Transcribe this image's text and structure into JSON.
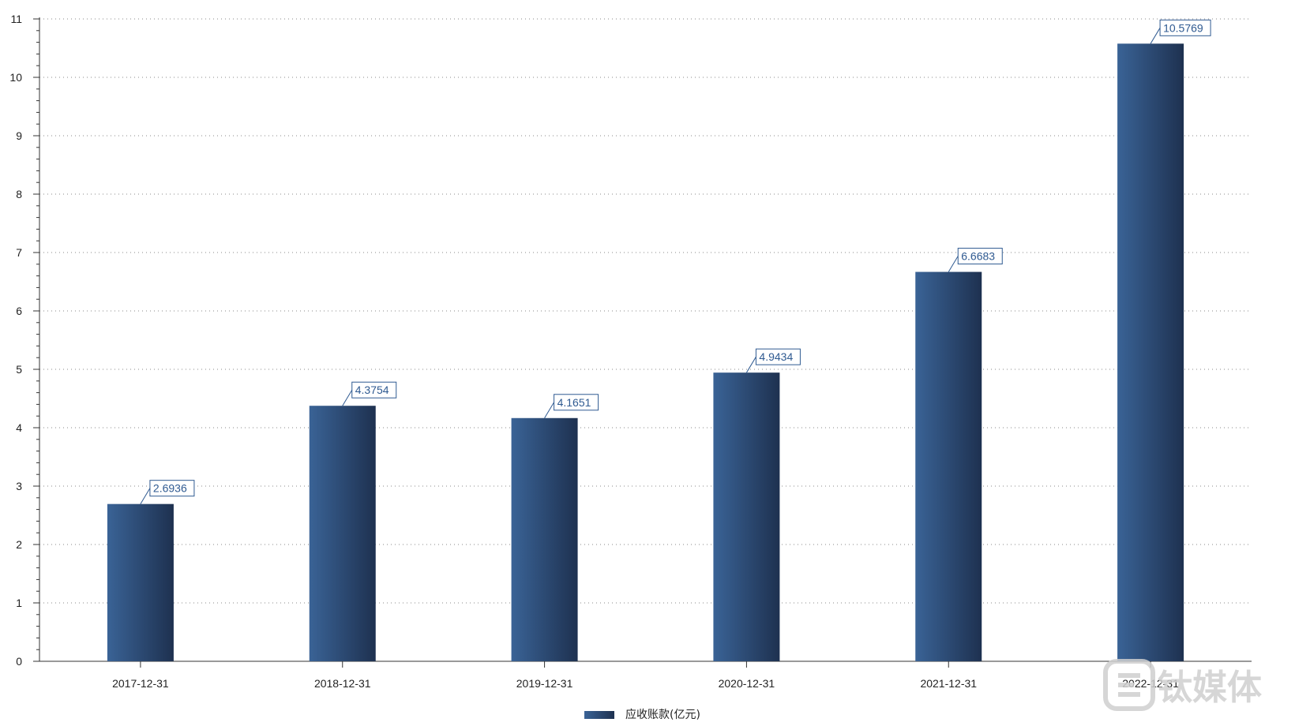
{
  "chart_data": {
    "type": "bar",
    "categories": [
      "2017-12-31",
      "2018-12-31",
      "2019-12-31",
      "2020-12-31",
      "2021-12-31",
      "2022-12-31"
    ],
    "series": [
      {
        "name": "应收账款(亿元)",
        "values": [
          2.6936,
          4.3754,
          4.1651,
          4.9434,
          6.6683,
          10.5769
        ]
      }
    ],
    "data_labels": [
      "2.6936",
      "4.3754",
      "4.1651",
      "4.9434",
      "6.6683",
      "10.5769"
    ],
    "yticks": [
      0,
      1,
      2,
      3,
      4,
      5,
      6,
      7,
      8,
      9,
      10,
      11
    ],
    "ylim": [
      0,
      11
    ],
    "grid": "horizontal-dotted",
    "legend_position": "bottom-center",
    "colors": {
      "bar_light": "#3a6396",
      "bar_dark": "#1e3150",
      "label": "#2f5a91",
      "axis": "#333333",
      "grid": "#888888"
    }
  },
  "watermark": {
    "text": "钛媒体"
  }
}
